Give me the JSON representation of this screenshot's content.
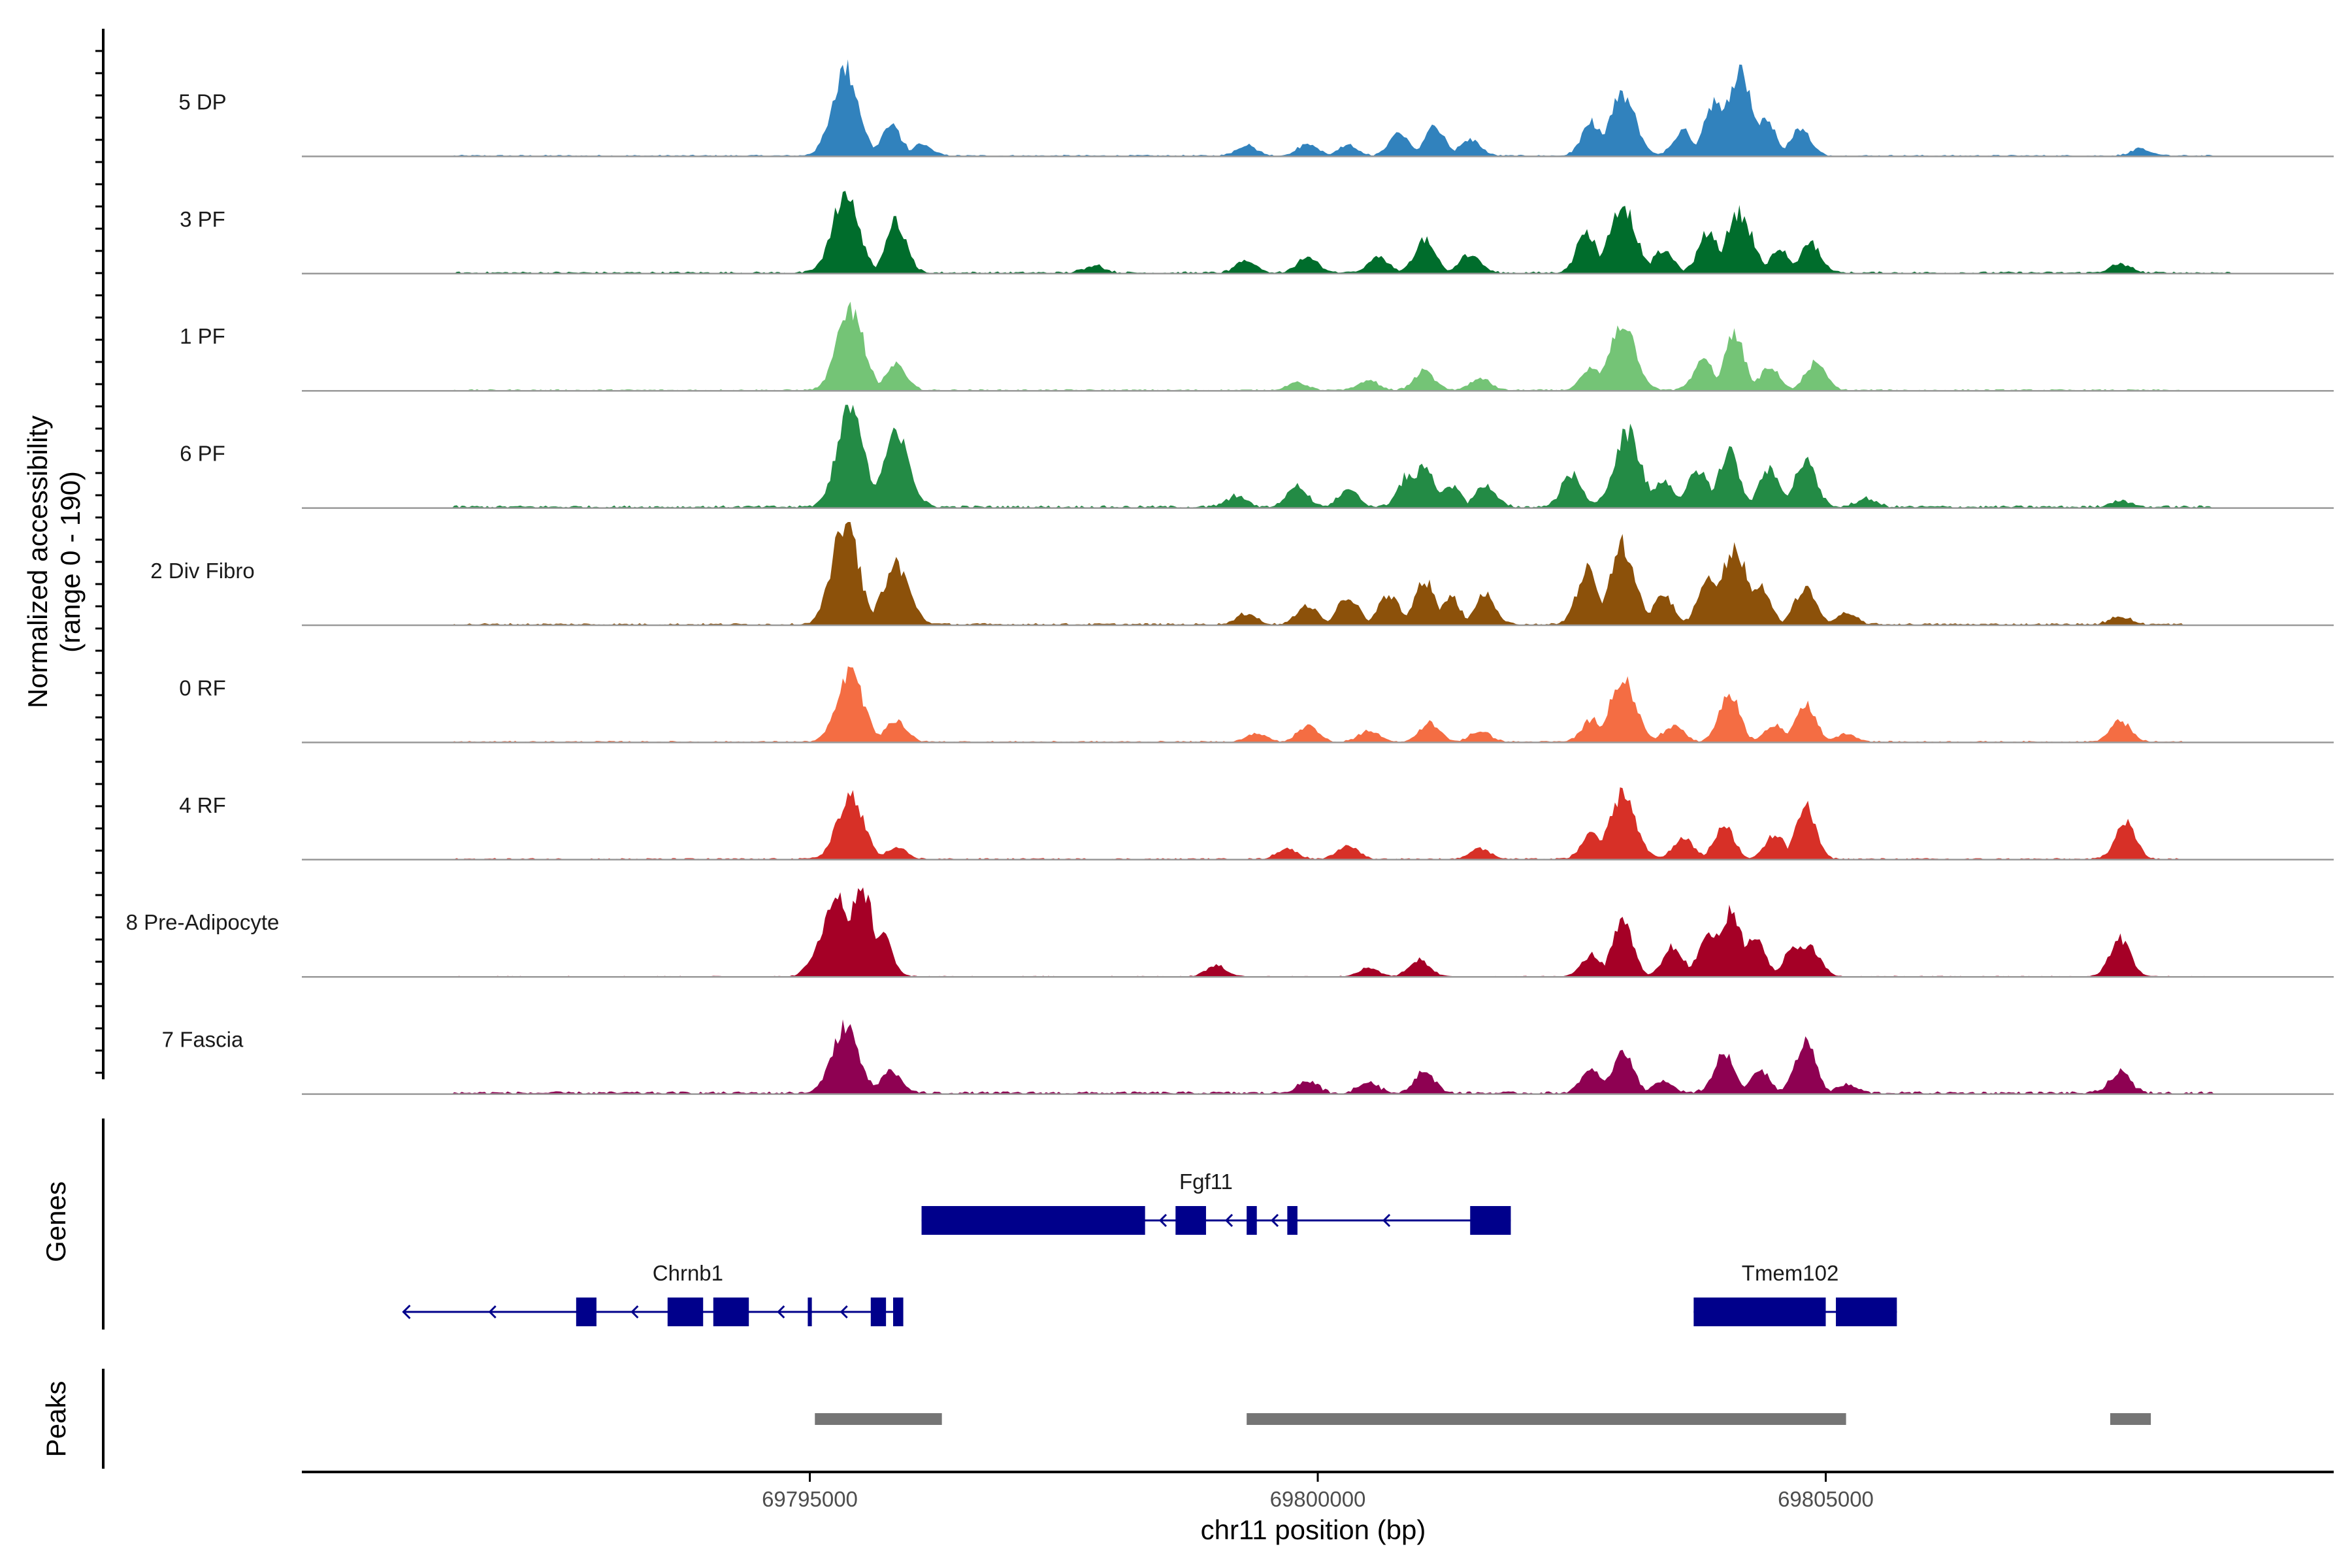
{
  "chart_data": {
    "type": "area",
    "title": "",
    "ylabel_line1": "Normalized accessibility",
    "ylabel_line2": "(range 0 - 190)",
    "xlabel": "chr11 position (bp)",
    "chromosome": "chr11",
    "xlim": [
      69790000,
      69810000
    ],
    "ylim": [
      0,
      190
    ],
    "x_ticks": [
      {
        "value": 69795000,
        "label": "69795000"
      },
      {
        "value": 69800000,
        "label": "69800000"
      },
      {
        "value": 69805000,
        "label": "69805000"
      }
    ],
    "tracks": [
      {
        "name": "5 DP",
        "color": "#3182bd",
        "peaks": [
          [
            69795350,
            160
          ],
          [
            69795800,
            55
          ],
          [
            69796100,
            20
          ],
          [
            69799300,
            20
          ],
          [
            69799900,
            22
          ],
          [
            69800300,
            18
          ],
          [
            69800800,
            40
          ],
          [
            69801150,
            55
          ],
          [
            69801500,
            30
          ],
          [
            69802700,
            60
          ],
          [
            69803000,
            110
          ],
          [
            69803600,
            45
          ],
          [
            69803900,
            100
          ],
          [
            69804150,
            155
          ],
          [
            69804400,
            70
          ],
          [
            69804750,
            50
          ],
          [
            69808100,
            12
          ]
        ],
        "floor_range": [
          69791500,
          69808800
        ],
        "floor_level": 3
      },
      {
        "name": "3 PF",
        "color": "#006d2c",
        "peaks": [
          [
            69795350,
            145
          ],
          [
            69795850,
            95
          ],
          [
            69797800,
            14
          ],
          [
            69799300,
            22
          ],
          [
            69799900,
            30
          ],
          [
            69800600,
            28
          ],
          [
            69801050,
            60
          ],
          [
            69801500,
            35
          ],
          [
            69802650,
            75
          ],
          [
            69803000,
            125
          ],
          [
            69803400,
            40
          ],
          [
            69803850,
            75
          ],
          [
            69804150,
            110
          ],
          [
            69804550,
            40
          ],
          [
            69804850,
            55
          ],
          [
            69807900,
            16
          ]
        ],
        "floor_range": [
          69791500,
          69809000
        ],
        "floor_level": 4
      },
      {
        "name": "1 PF",
        "color": "#74c476",
        "peaks": [
          [
            69795400,
            150
          ],
          [
            69795850,
            45
          ],
          [
            69799800,
            14
          ],
          [
            69800500,
            18
          ],
          [
            69801050,
            35
          ],
          [
            69801600,
            22
          ],
          [
            69802700,
            40
          ],
          [
            69803000,
            125
          ],
          [
            69803800,
            55
          ],
          [
            69804100,
            100
          ],
          [
            69804450,
            40
          ],
          [
            69804900,
            50
          ]
        ],
        "floor_range": [
          69791500,
          69808500
        ],
        "floor_level": 3
      },
      {
        "name": "6 PF",
        "color": "#238b45",
        "peaks": [
          [
            69795400,
            190
          ],
          [
            69795850,
            130
          ],
          [
            69799200,
            20
          ],
          [
            69799800,
            40
          ],
          [
            69800300,
            30
          ],
          [
            69800900,
            60
          ],
          [
            69801050,
            75
          ],
          [
            69801300,
            40
          ],
          [
            69801650,
            40
          ],
          [
            69802500,
            60
          ],
          [
            69803050,
            135
          ],
          [
            69803400,
            50
          ],
          [
            69803750,
            70
          ],
          [
            69804050,
            100
          ],
          [
            69804450,
            70
          ],
          [
            69804800,
            90
          ],
          [
            69805400,
            15
          ],
          [
            69807900,
            12
          ]
        ],
        "floor_range": [
          69791500,
          69808800
        ],
        "floor_level": 5
      },
      {
        "name": "2 Div Fibro",
        "color": "#8c510a",
        "peaks": [
          [
            69795350,
            190
          ],
          [
            69795850,
            110
          ],
          [
            69799300,
            20
          ],
          [
            69799900,
            35
          ],
          [
            69800300,
            50
          ],
          [
            69800700,
            55
          ],
          [
            69801050,
            80
          ],
          [
            69801300,
            50
          ],
          [
            69801650,
            55
          ],
          [
            69802650,
            100
          ],
          [
            69803000,
            145
          ],
          [
            69803400,
            55
          ],
          [
            69803850,
            90
          ],
          [
            69804100,
            140
          ],
          [
            69804350,
            70
          ],
          [
            69804800,
            70
          ],
          [
            69805200,
            20
          ],
          [
            69807900,
            15
          ]
        ],
        "floor_range": [
          69791500,
          69808500
        ],
        "floor_level": 4
      },
      {
        "name": "0 RF",
        "color": "#f46d43",
        "peaks": [
          [
            69795400,
            125
          ],
          [
            69795850,
            40
          ],
          [
            69799400,
            15
          ],
          [
            69799900,
            30
          ],
          [
            69800500,
            20
          ],
          [
            69801100,
            35
          ],
          [
            69801600,
            20
          ],
          [
            69802700,
            40
          ],
          [
            69803000,
            115
          ],
          [
            69803500,
            30
          ],
          [
            69804050,
            90
          ],
          [
            69804500,
            30
          ],
          [
            69804800,
            70
          ],
          [
            69805200,
            15
          ],
          [
            69807900,
            38
          ]
        ],
        "floor_range": [
          69791500,
          69808500
        ],
        "floor_level": 3
      },
      {
        "name": "4 RF",
        "color": "#d73027",
        "peaks": [
          [
            69795400,
            115
          ],
          [
            69795850,
            20
          ],
          [
            69799700,
            20
          ],
          [
            69800300,
            25
          ],
          [
            69801600,
            20
          ],
          [
            69802700,
            45
          ],
          [
            69803000,
            120
          ],
          [
            69803600,
            40
          ],
          [
            69804000,
            60
          ],
          [
            69804500,
            45
          ],
          [
            69804800,
            95
          ],
          [
            69807950,
            68
          ]
        ],
        "floor_range": [
          69791500,
          69808500
        ],
        "floor_level": 3
      },
      {
        "name": "8 Pre-Adipocyte",
        "color": "#a50026",
        "peaks": [
          [
            69795100,
            55
          ],
          [
            69795250,
            150
          ],
          [
            69795500,
            160
          ],
          [
            69795700,
            80
          ],
          [
            69799000,
            20
          ],
          [
            69800500,
            15
          ],
          [
            69801000,
            30
          ],
          [
            69802700,
            40
          ],
          [
            69803000,
            100
          ],
          [
            69803500,
            55
          ],
          [
            69803850,
            80
          ],
          [
            69804050,
            115
          ],
          [
            69804300,
            75
          ],
          [
            69804700,
            60
          ],
          [
            69804850,
            55
          ],
          [
            69807900,
            70
          ]
        ],
        "floor_range": [
          69791500,
          69808800
        ],
        "floor_level": 2
      },
      {
        "name": "7 Fascia",
        "color": "#8e0152",
        "peaks": [
          [
            69795350,
            125
          ],
          [
            69795800,
            40
          ],
          [
            69799900,
            22
          ],
          [
            69800500,
            20
          ],
          [
            69801050,
            40
          ],
          [
            69802700,
            45
          ],
          [
            69803000,
            80
          ],
          [
            69803400,
            20
          ],
          [
            69804000,
            70
          ],
          [
            69804350,
            40
          ],
          [
            69804800,
            95
          ],
          [
            69805200,
            15
          ],
          [
            69807900,
            38
          ]
        ],
        "floor_range": [
          69791500,
          69808800
        ],
        "floor_level": 5
      }
    ],
    "genes_panel_label": "Genes",
    "genes": [
      {
        "name": "Fgf11",
        "strand": "-",
        "start": 69796100,
        "end": 69801900,
        "exons": [
          [
            69796100,
            69798300
          ],
          [
            69798600,
            69798900
          ],
          [
            69799300,
            69799400
          ],
          [
            69799700,
            69799800
          ],
          [
            69801500,
            69801900
          ]
        ]
      },
      {
        "name": "Chrnb1",
        "strand": "-",
        "start": 69791000,
        "end": 69795900,
        "exons": [
          [
            69792700,
            69792900
          ],
          [
            69793600,
            69793950
          ],
          [
            69794050,
            69794400
          ],
          [
            69794980,
            69795020
          ],
          [
            69795600,
            69795750
          ],
          [
            69795820,
            69795920
          ]
        ]
      },
      {
        "name": "Tmem102",
        "strand": "-",
        "start": 69803700,
        "end": 69805700,
        "exons": [
          [
            69803700,
            69805000
          ],
          [
            69805100,
            69805700
          ]
        ]
      }
    ],
    "peaks_panel_label": "Peaks",
    "peak_regions": [
      [
        69795050,
        69796300
      ],
      [
        69799300,
        69805200
      ],
      [
        69807800,
        69808200
      ]
    ],
    "colors": {
      "gene": "#00008b",
      "peak_region": "#757575",
      "baseline": "#999999"
    }
  }
}
